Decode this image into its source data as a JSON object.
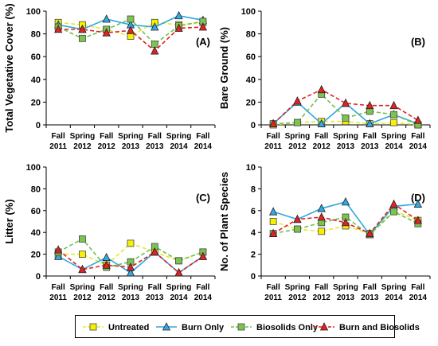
{
  "chart_data": [
    {
      "type": "line",
      "panel_label": "(A)",
      "ylabel": "Total Vegetative Cover (%)",
      "ylim": [
        0,
        100
      ],
      "yticks": [
        "0",
        "20",
        "40",
        "60",
        "80",
        "100"
      ],
      "categories": [
        [
          "Fall",
          "2011"
        ],
        [
          "Spring",
          "2012"
        ],
        [
          "Fall",
          "2012"
        ],
        [
          "Spring",
          "2013"
        ],
        [
          "Fall",
          "2013"
        ],
        [
          "Spring",
          "2014"
        ],
        [
          "Fall",
          "2014"
        ]
      ],
      "series": [
        {
          "name": "Untreated",
          "values": [
            90,
            88,
            84,
            78,
            90,
            88,
            90
          ]
        },
        {
          "name": "Burn Only",
          "values": [
            88,
            84,
            93,
            88,
            86,
            96,
            92
          ]
        },
        {
          "name": "Biosolids Only",
          "values": [
            86,
            76,
            84,
            93,
            71,
            87,
            91
          ]
        },
        {
          "name": "Burn and Biosolids",
          "values": [
            84,
            84,
            81,
            83,
            65,
            85,
            86
          ]
        }
      ]
    },
    {
      "type": "line",
      "panel_label": "(B)",
      "ylabel": "Bare Ground (%)",
      "ylim": [
        0,
        100
      ],
      "yticks": [
        "0",
        "20",
        "40",
        "60",
        "80",
        "100"
      ],
      "categories": [
        [
          "Fall",
          "2011"
        ],
        [
          "Spring",
          "2012"
        ],
        [
          "Fall",
          "2012"
        ],
        [
          "Spring",
          "2013"
        ],
        [
          "Fall",
          "2013"
        ],
        [
          "Spring",
          "2014"
        ],
        [
          "Fall",
          "2014"
        ]
      ],
      "series": [
        {
          "name": "Untreated",
          "values": [
            0,
            2,
            3,
            3,
            1,
            2,
            0
          ]
        },
        {
          "name": "Burn Only",
          "values": [
            1,
            20,
            1,
            19,
            1,
            9,
            1
          ]
        },
        {
          "name": "Biosolids Only",
          "values": [
            1,
            2,
            27,
            6,
            12,
            9,
            0
          ]
        },
        {
          "name": "Burn and Biosolids",
          "values": [
            1,
            21,
            31,
            19,
            17,
            17,
            4
          ]
        }
      ]
    },
    {
      "type": "line",
      "panel_label": "(C)",
      "ylabel": "Litter (%)",
      "ylim": [
        0,
        100
      ],
      "yticks": [
        "0",
        "20",
        "40",
        "60",
        "80",
        "100"
      ],
      "categories": [
        [
          "Fall",
          "2011"
        ],
        [
          "Spring",
          "2012"
        ],
        [
          "Fall",
          "2012"
        ],
        [
          "Spring",
          "2013"
        ],
        [
          "Fall",
          "2013"
        ],
        [
          "Spring",
          "2014"
        ],
        [
          "Fall",
          "2014"
        ]
      ],
      "series": [
        {
          "name": "Untreated",
          "values": [
            20,
            20,
            10,
            30,
            22,
            14,
            22
          ]
        },
        {
          "name": "Burn Only",
          "values": [
            18,
            6,
            17,
            3,
            22,
            3,
            18
          ]
        },
        {
          "name": "Biosolids Only",
          "values": [
            22,
            34,
            8,
            13,
            27,
            14,
            22
          ]
        },
        {
          "name": "Burn and Biosolids",
          "values": [
            24,
            6,
            10,
            8,
            22,
            3,
            18
          ]
        }
      ]
    },
    {
      "type": "line",
      "panel_label": "(D)",
      "ylabel": "No. of Plant Species",
      "ylim": [
        0,
        10
      ],
      "yticks": [
        "0",
        "2",
        "4",
        "6",
        "8",
        "10"
      ],
      "categories": [
        [
          "Fall",
          "2011"
        ],
        [
          "Spring",
          "2012"
        ],
        [
          "Fall",
          "2012"
        ],
        [
          "Spring",
          "2013"
        ],
        [
          "Fall",
          "2013"
        ],
        [
          "Spring",
          "2014"
        ],
        [
          "Fall",
          "2014"
        ]
      ],
      "series": [
        {
          "name": "Untreated",
          "values": [
            5.0,
            4.3,
            4.1,
            4.6,
            3.9,
            6.0,
            5.1
          ]
        },
        {
          "name": "Burn Only",
          "values": [
            5.9,
            5.2,
            6.2,
            6.8,
            3.8,
            6.4,
            6.6
          ]
        },
        {
          "name": "Biosolids Only",
          "values": [
            3.9,
            4.3,
            4.9,
            5.4,
            3.8,
            5.9,
            4.8
          ]
        },
        {
          "name": "Burn and Biosolids",
          "values": [
            3.9,
            5.2,
            5.4,
            4.9,
            3.9,
            6.6,
            5.1
          ]
        }
      ]
    }
  ],
  "legend": {
    "items": [
      {
        "label": "Untreated",
        "line": "#e8e830",
        "marker": "square",
        "fill": "#f4f200"
      },
      {
        "label": "Burn Only",
        "line": "#2fa7e0",
        "marker": "triangle",
        "fill": "#35a9e3"
      },
      {
        "label": "Biosolids Only",
        "line": "#6fc24a",
        "marker": "square",
        "fill": "#7cc450"
      },
      {
        "label": "Burn and Biosolids",
        "line": "#e02020",
        "marker": "triangle",
        "fill": "#e32222"
      }
    ]
  }
}
